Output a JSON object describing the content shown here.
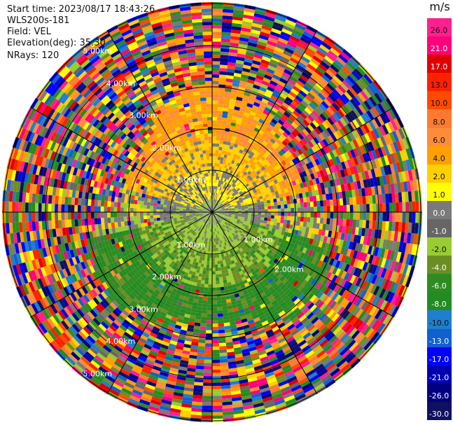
{
  "header": {
    "start_time": "Start time: 2023/08/17 18:43:26",
    "instrument": "WLS200s-181",
    "field": "Field: VEL",
    "elevation": "Elevation(deg): 35.30",
    "nrays": "NRays: 120"
  },
  "colorbar": {
    "unit": "m/s",
    "ticks": [
      "26.0",
      "21.0",
      "17.0",
      "13.0",
      "10.0",
      "8.0",
      "6.0",
      "4.0",
      "2.0",
      "1.0",
      "0.0",
      "-1.0",
      "-2.0",
      "-4.0",
      "-6.0",
      "-8.0",
      "-10.0",
      "-13.0",
      "-17.0",
      "-21.0",
      "-26.0",
      "-30.0"
    ],
    "colors": [
      "#ff1f8f",
      "#ff007a",
      "#e00000",
      "#ff2000",
      "#ff4a00",
      "#ff7a30",
      "#ff8c3a",
      "#ffa000",
      "#ffd000",
      "#ffff00",
      "#7a7a7a",
      "#666666",
      "#99cc33",
      "#6b8e23",
      "#2e8b22",
      "#228b22",
      "#1f7fcc",
      "#1060d0",
      "#0000ff",
      "#0000b0",
      "#000080",
      "#101060"
    ]
  },
  "rings": {
    "labels": [
      "1.00km",
      "2.00km",
      "3.00km",
      "4.00km",
      "5.00km"
    ]
  }
}
